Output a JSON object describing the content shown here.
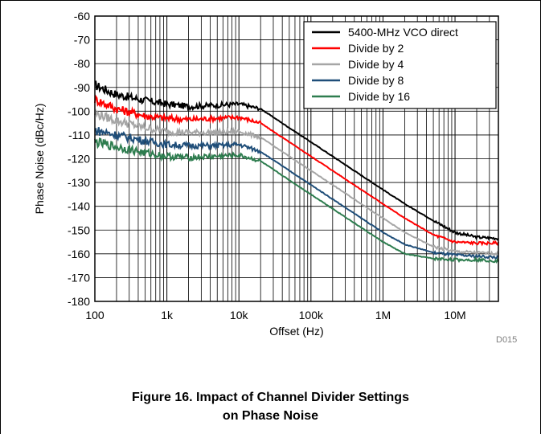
{
  "chart_data": {
    "type": "line",
    "xlabel": "Offset (Hz)",
    "ylabel": "Phase Noise (dBc/Hz)",
    "x_scale": "log",
    "xlim": [
      100,
      40000000
    ],
    "ylim": [
      -180,
      -60
    ],
    "x_ticks": [
      100,
      1000,
      10000,
      100000,
      1000000,
      10000000
    ],
    "x_tick_labels": [
      "100",
      "1k",
      "10k",
      "100k",
      "1M",
      "10M"
    ],
    "y_ticks": [
      -180,
      -170,
      -160,
      -150,
      -140,
      -130,
      -120,
      -110,
      -100,
      -90,
      -80,
      -70,
      -60
    ],
    "y_tick_labels": [
      "-180",
      "-170",
      "-160",
      "-150",
      "-140",
      "-130",
      "-120",
      "-110",
      "-100",
      "-90",
      "-80",
      "-70",
      "-60"
    ],
    "grid": true,
    "legend_position": "top-right",
    "x": [
      100,
      200,
      500,
      1000,
      2000,
      5000,
      10000,
      20000,
      50000,
      100000,
      200000,
      500000,
      1000000,
      2000000,
      5000000,
      10000000,
      20000000,
      40000000
    ],
    "series": [
      {
        "name": "5400-MHz VCO direct",
        "color": "#000000",
        "values": [
          -89,
          -93,
          -95.5,
          -97,
          -98,
          -97.5,
          -97,
          -99,
          -107,
          -113,
          -119,
          -127,
          -133,
          -139,
          -146,
          -151,
          -153,
          -153.5
        ]
      },
      {
        "name": "Divide by 2",
        "color": "#ff0000",
        "values": [
          -95,
          -99,
          -102,
          -103,
          -103.5,
          -103,
          -102.5,
          -105,
          -113,
          -119,
          -125,
          -133,
          -139,
          -145,
          -152,
          -155,
          -155.5,
          -155.5
        ]
      },
      {
        "name": "Divide by 4",
        "color": "#a6a6a6",
        "values": [
          -101,
          -104,
          -107,
          -108.5,
          -109,
          -109,
          -108.5,
          -111,
          -119,
          -125,
          -131,
          -139,
          -145,
          -151,
          -157,
          -159,
          -159.5,
          -160
        ]
      },
      {
        "name": "Divide by 8",
        "color": "#1f4e79",
        "values": [
          -108,
          -110,
          -112.5,
          -114,
          -114.5,
          -114.5,
          -114,
          -117,
          -125,
          -131,
          -137,
          -145,
          -151,
          -156,
          -159.5,
          -160.5,
          -161,
          -161.5
        ]
      },
      {
        "name": "Divide by 16",
        "color": "#2e7d4f",
        "values": [
          -113,
          -115,
          -117.5,
          -119,
          -119.5,
          -119,
          -118.5,
          -121,
          -129,
          -135,
          -141,
          -149,
          -155,
          -160,
          -162,
          -162.5,
          -162.5,
          -163
        ]
      }
    ],
    "watermark": "D015"
  },
  "caption": {
    "line1": "Figure 16. Impact of Channel Divider Settings",
    "line2": "on Phase Noise"
  }
}
